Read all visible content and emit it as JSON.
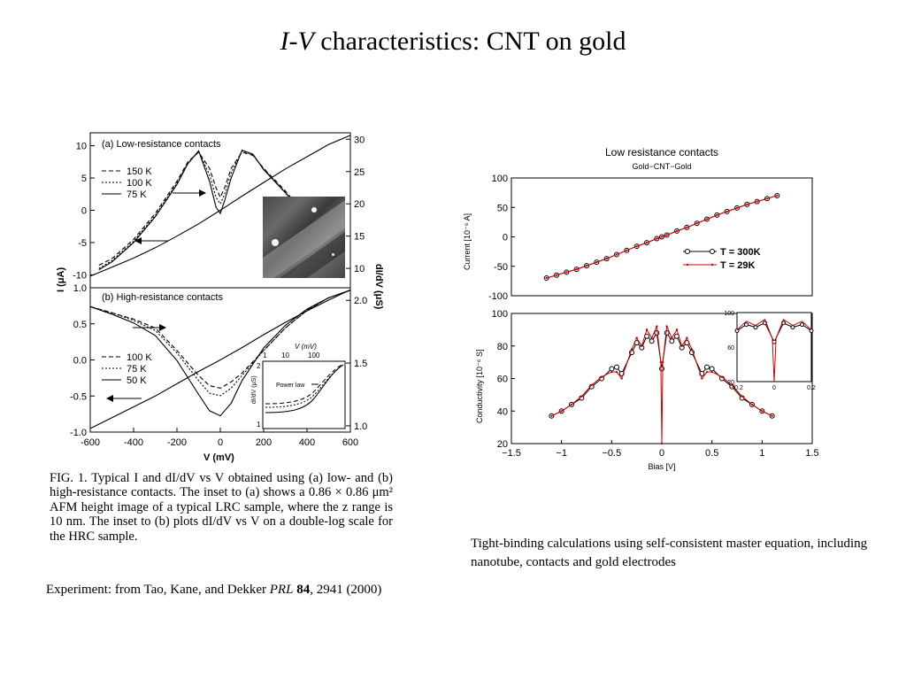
{
  "slide": {
    "title_italic": "I-V",
    "title_rest": " characteristics: CNT on gold"
  },
  "left_figure": {
    "panel_a_label": "(a) Low-resistance contacts",
    "panel_b_label": "(b) High-resistance contacts",
    "ylabel_left": "I (μA)",
    "ylabel_right": "dI/dV (μS)",
    "xlabel": "V (mV)",
    "legend_a": [
      "150 K",
      "100 K",
      "75 K"
    ],
    "legend_b": [
      "100 K",
      "75 K",
      "50 K"
    ],
    "inset_b_xlabel": "V (mV)",
    "inset_b_ylabel": "dI/dV (μS)",
    "inset_b_annotation": "Power law"
  },
  "caption": "FIG. 1.   Typical I and dI/dV vs V obtained using (a) low- and (b) high-resistance contacts. The inset to (a) shows a 0.86 × 0.86 μm² AFM height image of a typical LRC sample, where the z range is 10 nm. The inset to (b) plots dI/dV vs V on a double-log scale for the HRC sample.",
  "note_left_prefix": "Experiment: from Tao, Kane, and Dekker ",
  "note_left_journal": "PRL",
  "note_left_volume": "84",
  "note_left_suffix": ", 2941 (2000)",
  "note_right": "Tight-binding calculations using self-consistent master equation, including nanotube, contacts and gold electrodes",
  "chart_data": [
    {
      "type": "line",
      "title": "(a) Low-resistance contacts",
      "xlabel": "V (mV)",
      "ylabel": "I (μA)",
      "ylabel_right": "dI/dV (μS)",
      "xlim": [
        -600,
        600
      ],
      "ylim": [
        -12,
        12
      ],
      "ylim_right": [
        7,
        31
      ],
      "x_ticks": [
        -600,
        -400,
        -200,
        0,
        200,
        400,
        600
      ],
      "y_ticks": [
        -10,
        -5,
        0,
        5,
        10
      ],
      "y_ticks_right": [
        10,
        15,
        20,
        25,
        30
      ],
      "series": [
        {
          "name": "75 K",
          "axis": "left",
          "x": [
            -600,
            -500,
            -400,
            -300,
            -200,
            -100,
            0,
            100,
            200,
            300,
            400,
            500,
            600
          ],
          "values": [
            -10.2,
            -8.8,
            -7.4,
            -5.8,
            -4.0,
            -2.1,
            0.0,
            2.2,
            4.3,
            6.4,
            8.3,
            10.2,
            11.6
          ]
        },
        {
          "name": "150 K",
          "axis": "right",
          "x": [
            -560,
            -500,
            -400,
            -300,
            -200,
            -150,
            -100,
            -50,
            -20,
            0,
            20,
            50,
            100,
            150,
            200,
            300,
            350
          ],
          "values": [
            10.5,
            11.5,
            14.5,
            18.5,
            23.5,
            26.5,
            28.0,
            25.5,
            22.5,
            21.0,
            22.5,
            25.5,
            28.0,
            27.5,
            25.5,
            22.0,
            20.0
          ]
        },
        {
          "name": "100 K",
          "axis": "right",
          "x": [
            -560,
            -500,
            -400,
            -300,
            -200,
            -150,
            -100,
            -50,
            -20,
            0,
            20,
            50,
            100,
            150,
            200,
            300,
            350
          ],
          "values": [
            10.0,
            11.2,
            14.2,
            18.2,
            23.2,
            26.3,
            28.1,
            24.5,
            21.0,
            20.0,
            21.5,
            24.8,
            28.2,
            27.6,
            25.4,
            21.8,
            19.8
          ]
        },
        {
          "name": "75 K",
          "axis": "right",
          "x": [
            -560,
            -500,
            -400,
            -300,
            -200,
            -150,
            -100,
            -50,
            -20,
            0,
            20,
            50,
            100,
            150,
            200,
            300,
            350
          ],
          "values": [
            9.8,
            11.0,
            14.0,
            18.0,
            23.0,
            26.2,
            28.2,
            23.5,
            19.5,
            18.5,
            20.5,
            24.0,
            28.3,
            27.7,
            25.3,
            21.7,
            19.7
          ]
        }
      ]
    },
    {
      "type": "line",
      "title": "(b) High-resistance contacts",
      "xlabel": "V (mV)",
      "ylabel": "I (μA)",
      "ylabel_right": "dI/dV (μS)",
      "xlim": [
        -600,
        600
      ],
      "ylim": [
        -1.0,
        1.0
      ],
      "ylim_right": [
        0.95,
        2.1
      ],
      "x_ticks": [
        -600,
        -400,
        -200,
        0,
        200,
        400,
        600
      ],
      "y_ticks": [
        -1.0,
        -0.5,
        0.0,
        0.5,
        1.0
      ],
      "y_ticks_right": [
        1.0,
        1.5,
        2.0
      ],
      "series": [
        {
          "name": "50 K",
          "axis": "left",
          "x": [
            -600,
            -500,
            -400,
            -300,
            -200,
            -100,
            0,
            100,
            200,
            300,
            400,
            500,
            600
          ],
          "values": [
            -0.95,
            -0.8,
            -0.65,
            -0.5,
            -0.33,
            -0.16,
            0.0,
            0.17,
            0.35,
            0.52,
            0.68,
            0.83,
            0.97
          ]
        },
        {
          "name": "100 K",
          "axis": "right",
          "x": [
            -600,
            -500,
            -400,
            -300,
            -200,
            -100,
            -50,
            0,
            50,
            100,
            200,
            300,
            400,
            500,
            600
          ],
          "values": [
            1.95,
            1.9,
            1.85,
            1.78,
            1.6,
            1.4,
            1.32,
            1.3,
            1.35,
            1.42,
            1.6,
            1.78,
            1.92,
            2.02,
            2.08
          ]
        },
        {
          "name": "75 K",
          "axis": "right",
          "x": [
            -600,
            -500,
            -400,
            -300,
            -200,
            -100,
            -50,
            0,
            50,
            100,
            200,
            300,
            400,
            500,
            600
          ],
          "values": [
            1.95,
            1.9,
            1.84,
            1.76,
            1.58,
            1.36,
            1.26,
            1.24,
            1.3,
            1.4,
            1.6,
            1.78,
            1.92,
            2.02,
            2.08
          ]
        },
        {
          "name": "50 K",
          "axis": "right",
          "x": [
            -600,
            -500,
            -400,
            -300,
            -200,
            -100,
            -50,
            0,
            50,
            100,
            200,
            300,
            400,
            500,
            600
          ],
          "values": [
            1.95,
            1.89,
            1.82,
            1.72,
            1.52,
            1.25,
            1.12,
            1.08,
            1.18,
            1.36,
            1.62,
            1.8,
            1.93,
            2.02,
            2.08
          ]
        }
      ]
    },
    {
      "type": "line",
      "title": "Low resistance contacts",
      "subtitle": "Gold−CNT−Gold",
      "xlabel": "Bias [V]",
      "ylabel": "Current [10⁻⁶ A]",
      "xlim": [
        -1.5,
        1.5
      ],
      "ylim": [
        -100,
        100
      ],
      "x_ticks": [
        -1.5,
        -1,
        -0.5,
        0,
        0.5,
        1,
        1.5
      ],
      "y_ticks": [
        -100,
        -50,
        0,
        50,
        100
      ],
      "series": [
        {
          "name": "T = 300K",
          "color": "#000000",
          "x": [
            -1.15,
            -1.05,
            -0.95,
            -0.85,
            -0.75,
            -0.65,
            -0.55,
            -0.45,
            -0.35,
            -0.25,
            -0.15,
            -0.05,
            0.0,
            0.05,
            0.15,
            0.25,
            0.35,
            0.45,
            0.55,
            0.65,
            0.75,
            0.85,
            0.95,
            1.05,
            1.15
          ],
          "values": [
            -70,
            -65,
            -60,
            -55,
            -49,
            -43,
            -37,
            -30,
            -23,
            -16,
            -10,
            -3,
            0,
            3,
            10,
            16,
            23,
            30,
            37,
            43,
            49,
            55,
            60,
            65,
            70
          ]
        },
        {
          "name": "T = 29K",
          "color": "#d40000",
          "x": [
            -1.15,
            -1.05,
            -0.95,
            -0.85,
            -0.75,
            -0.65,
            -0.55,
            -0.45,
            -0.35,
            -0.25,
            -0.15,
            -0.05,
            0.0,
            0.05,
            0.15,
            0.25,
            0.35,
            0.45,
            0.55,
            0.65,
            0.75,
            0.85,
            0.95,
            1.05,
            1.15
          ],
          "values": [
            -70,
            -65,
            -60,
            -55,
            -49,
            -43,
            -37,
            -30,
            -23,
            -16,
            -10,
            -3,
            0,
            3,
            10,
            16,
            23,
            30,
            37,
            43,
            49,
            55,
            60,
            65,
            70
          ]
        }
      ]
    },
    {
      "type": "line",
      "title": "",
      "xlabel": "Bias [V]",
      "ylabel": "Conductivity [10⁻⁶ S]",
      "xlim": [
        -1.5,
        1.5
      ],
      "ylim": [
        20,
        100
      ],
      "x_ticks": [
        -1.5,
        -1,
        -0.5,
        0,
        0.5,
        1,
        1.5
      ],
      "y_ticks": [
        20,
        40,
        60,
        80,
        100
      ],
      "inset": {
        "xlim": [
          -0.2,
          0.2
        ],
        "ylim": [
          20,
          100
        ],
        "x_ticks": [
          -0.2,
          0,
          0.2
        ],
        "y_ticks": [
          20,
          60,
          100
        ]
      },
      "series": [
        {
          "name": "T = 300K",
          "color": "#000000",
          "x": [
            -1.1,
            -1.0,
            -0.9,
            -0.8,
            -0.7,
            -0.6,
            -0.5,
            -0.45,
            -0.4,
            -0.3,
            -0.25,
            -0.2,
            -0.15,
            -0.1,
            -0.05,
            0.0,
            0.05,
            0.1,
            0.15,
            0.2,
            0.25,
            0.3,
            0.4,
            0.45,
            0.5,
            0.6,
            0.7,
            0.8,
            0.9,
            1.0,
            1.1
          ],
          "values": [
            37,
            40,
            44,
            48,
            55,
            60,
            66,
            67,
            63,
            76,
            82,
            79,
            86,
            83,
            88,
            66,
            88,
            83,
            86,
            79,
            82,
            76,
            63,
            67,
            66,
            60,
            55,
            48,
            44,
            40,
            37
          ]
        },
        {
          "name": "T = 29K",
          "color": "#d40000",
          "x": [
            -1.1,
            -1.0,
            -0.9,
            -0.8,
            -0.7,
            -0.6,
            -0.5,
            -0.45,
            -0.4,
            -0.3,
            -0.25,
            -0.2,
            -0.15,
            -0.1,
            -0.05,
            -0.01,
            0.0,
            0.01,
            0.05,
            0.1,
            0.15,
            0.2,
            0.25,
            0.3,
            0.4,
            0.45,
            0.5,
            0.6,
            0.7,
            0.8,
            0.9,
            1.0,
            1.1
          ],
          "values": [
            37,
            40,
            44,
            49,
            56,
            61,
            64,
            64,
            60,
            78,
            85,
            80,
            90,
            85,
            92,
            70,
            20,
            70,
            92,
            85,
            90,
            80,
            85,
            78,
            60,
            64,
            64,
            61,
            56,
            49,
            44,
            40,
            37
          ]
        }
      ]
    }
  ]
}
